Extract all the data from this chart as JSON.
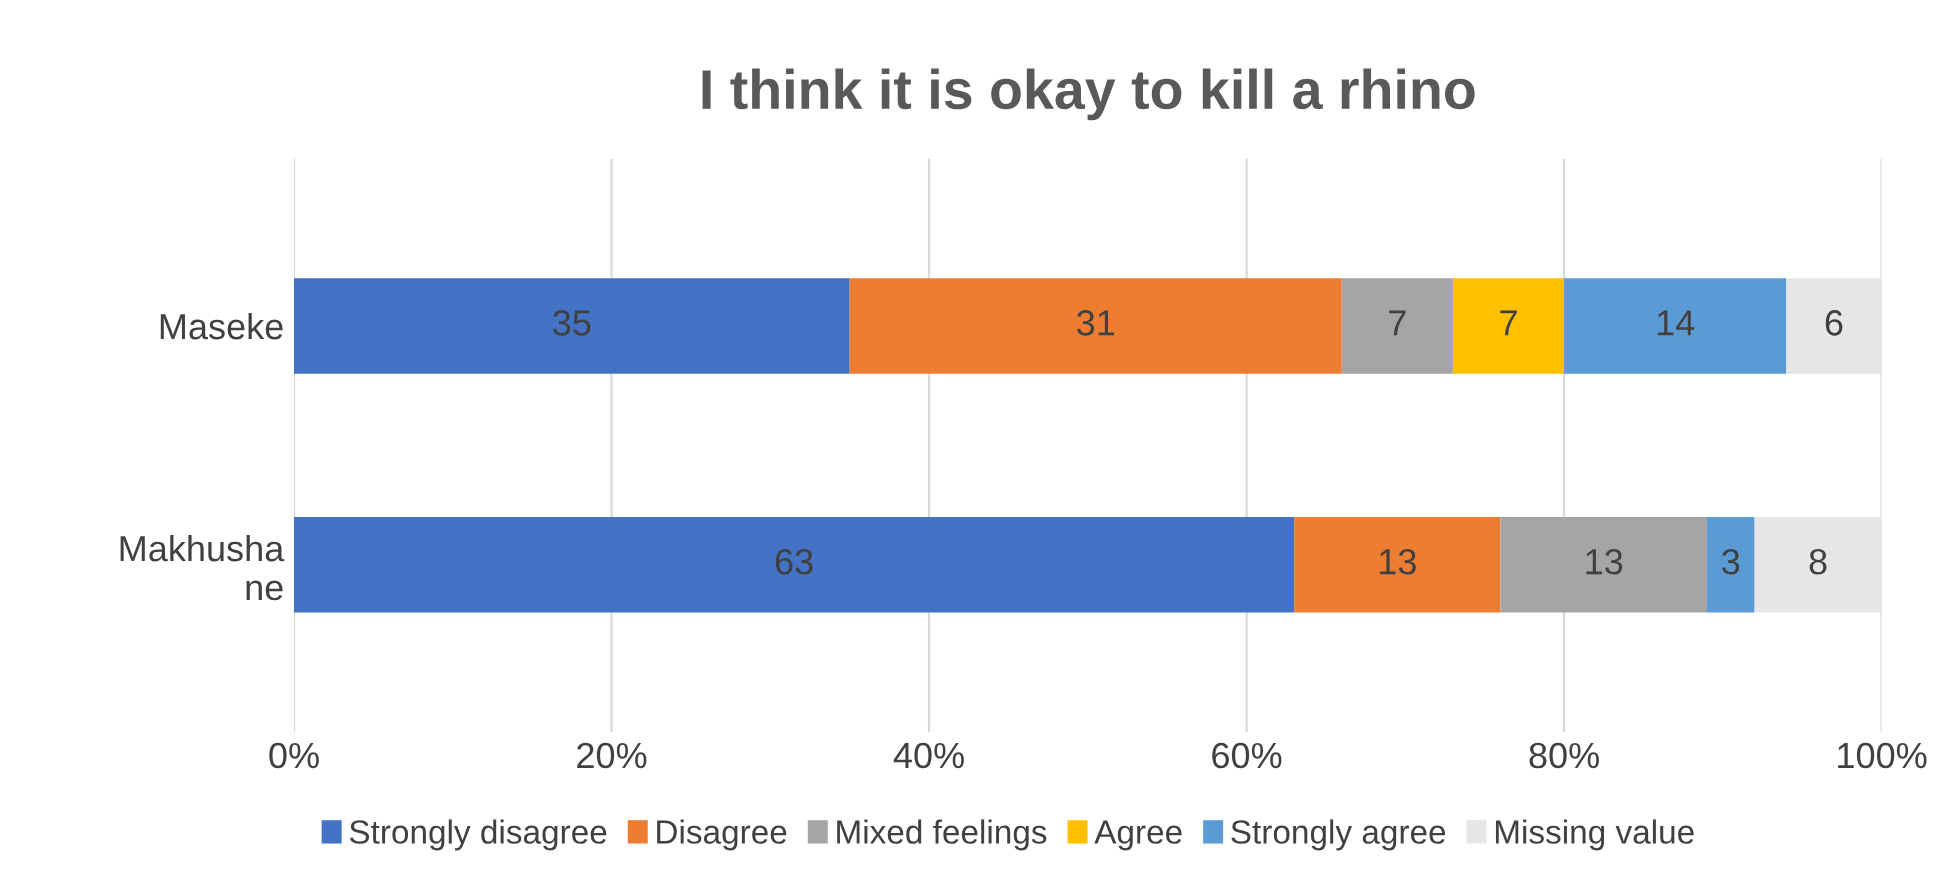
{
  "chart_data": {
    "type": "bar",
    "orientation": "horizontal",
    "stacked": true,
    "title": "I think it is okay to kill a rhino",
    "categories": [
      "Maseke",
      "Makhusha\nne"
    ],
    "series": [
      {
        "name": "Strongly disagree",
        "color": "#4472c4",
        "values": [
          35,
          63
        ],
        "value_labels": [
          "35",
          "63"
        ]
      },
      {
        "name": "Disagree",
        "color": "#ed7d31",
        "values": [
          31,
          13
        ],
        "value_labels": [
          "31",
          "13"
        ]
      },
      {
        "name": "Mixed feelings",
        "color": "#a5a5a5",
        "values": [
          7,
          13
        ],
        "value_labels": [
          "7",
          "13"
        ]
      },
      {
        "name": "Agree",
        "color": "#ffc000",
        "values": [
          7,
          0
        ],
        "value_labels": [
          "7",
          null
        ]
      },
      {
        "name": "Strongly agree",
        "color": "#5b9bd5",
        "values": [
          14,
          3
        ],
        "value_labels": [
          "14",
          "3"
        ]
      },
      {
        "name": "Missing value",
        "color": "#e7e6e6",
        "values": [
          6,
          8
        ],
        "value_labels": [
          "6",
          "8"
        ]
      }
    ],
    "xlim": [
      0,
      100
    ],
    "xticks": [
      {
        "value": 0,
        "label": "0%"
      },
      {
        "value": 20,
        "label": "20%"
      },
      {
        "value": 40,
        "label": "40%"
      },
      {
        "value": 60,
        "label": "60%"
      },
      {
        "value": 80,
        "label": "80%"
      },
      {
        "value": 100,
        "label": "100%"
      }
    ],
    "grid": "x",
    "legend": "bottom"
  }
}
